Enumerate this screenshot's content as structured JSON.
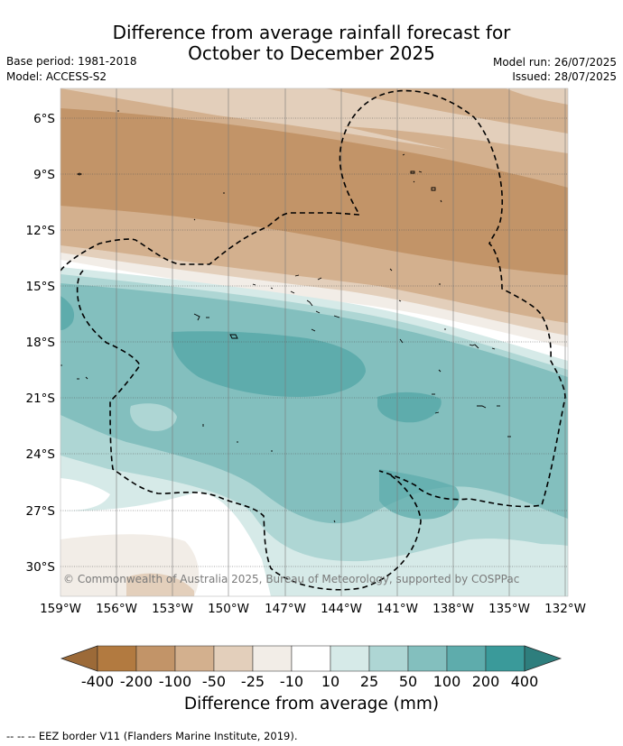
{
  "title": {
    "line1": "Difference from average rainfall forecast for",
    "line2": "October to December 2025"
  },
  "meta": {
    "base_period": "Base period: 1981-2018",
    "model": "Model: ACCESS-S2",
    "model_run": "Model run: 26/07/2025",
    "issued": "Issued: 28/07/2025"
  },
  "map": {
    "lat_labels": [
      "6°S",
      "9°S",
      "12°S",
      "15°S",
      "18°S",
      "21°S",
      "24°S",
      "27°S",
      "30°S"
    ],
    "lon_labels": [
      "159°W",
      "156°W",
      "153°W",
      "150°W",
      "147°W",
      "144°W",
      "141°W",
      "138°W",
      "135°W",
      "132°W"
    ],
    "credit": "© Commonwealth of Australia 2025, Bureau of Meteorology, supported by COSPPac",
    "boundary_style": "dashed black",
    "dry_region": "north (brown)",
    "wet_region": "centre and south (teal)"
  },
  "colorbar": {
    "title": "Difference from average (mm)",
    "ticks": [
      "-400",
      "-200",
      "-100",
      "-50",
      "-25",
      "-10",
      "10",
      "25",
      "50",
      "100",
      "200",
      "400"
    ],
    "colors": [
      "#9c6a38",
      "#b27a40",
      "#c29468",
      "#d3b08e",
      "#e3cfbb",
      "#f2ede7",
      "#ffffff",
      "#d6eae8",
      "#aed6d4",
      "#83bfbe",
      "#5eacac",
      "#3a9a9a",
      "#2e7e7d"
    ]
  },
  "legend": {
    "eez": "-- -- -- EEZ border V11 (Flanders Marine Institute, 2019)."
  }
}
